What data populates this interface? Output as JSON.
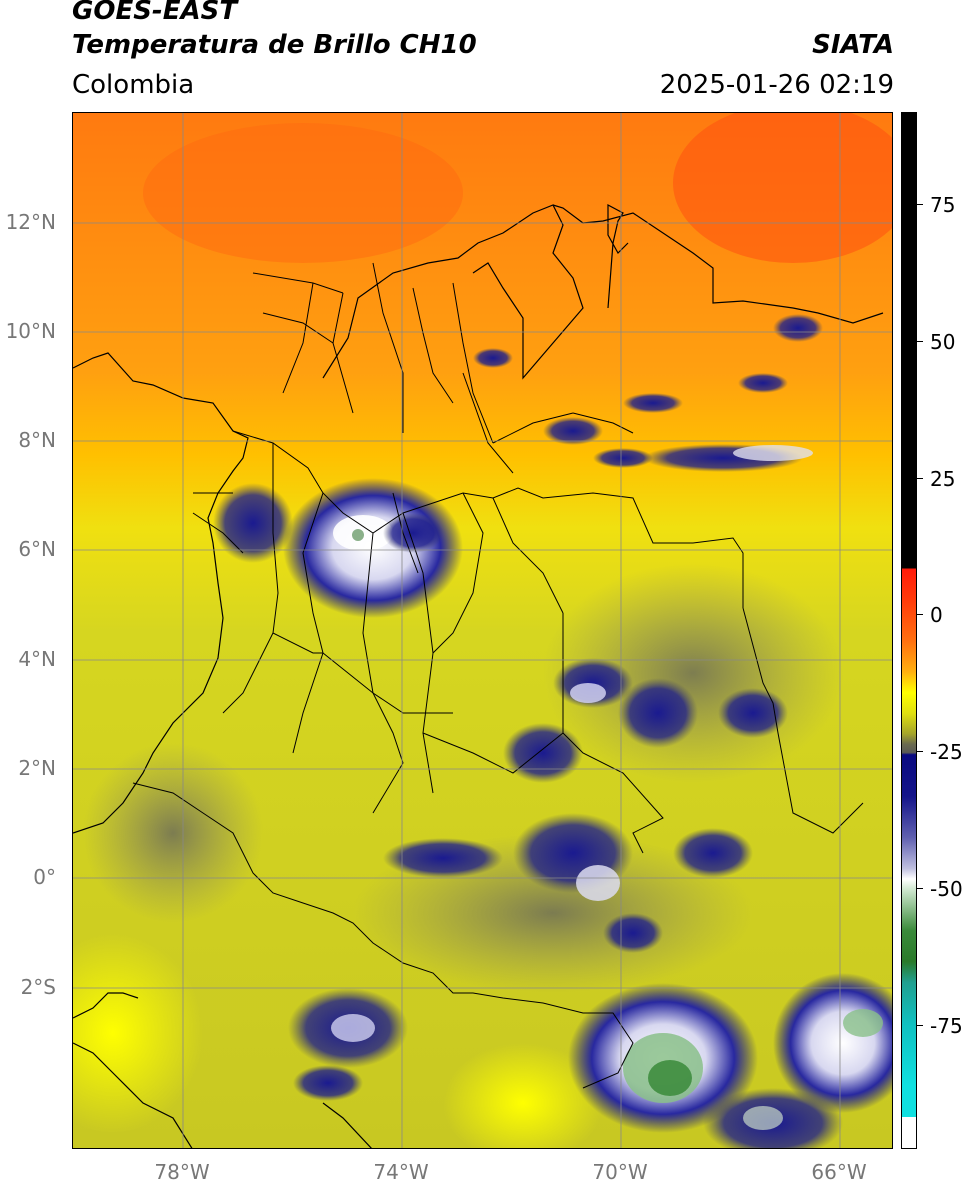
{
  "header": {
    "satellite": "GOES-EAST",
    "product": "Temperatura de Brillo CH10",
    "source": "SIATA",
    "region": "Colombia",
    "datetime": "2025-01-26 02:19"
  },
  "map": {
    "lat_labels": [
      "12°N",
      "10°N",
      "8°N",
      "6°N",
      "4°N",
      "2°N",
      "0°",
      "2°S"
    ],
    "lon_labels": [
      "78°W",
      "74°W",
      "70°W",
      "66°W"
    ],
    "lat_range": [
      -4.8,
      14.0
    ],
    "lon_range": [
      -79.9,
      -64.9
    ],
    "gridlines": true,
    "grid_color": "#888888",
    "background_warm_color": "#ff7a10",
    "background_cool_color": "#c8c81e"
  },
  "colorbar": {
    "ticks": [
      "75",
      "50",
      "25",
      "0",
      "-25",
      "-50",
      "-75"
    ],
    "range": [
      -96,
      90
    ],
    "colors": {
      "black": "#000000",
      "red": "#ff1a0a",
      "orange": "#ff9a10",
      "yellow": "#ffff00",
      "olive": "#a4a42a",
      "grey": "#5a5a55",
      "navy": "#0a0a80",
      "white": "#ffffff",
      "green": "#2a8a2a",
      "cyan": "#10e0e0"
    }
  }
}
